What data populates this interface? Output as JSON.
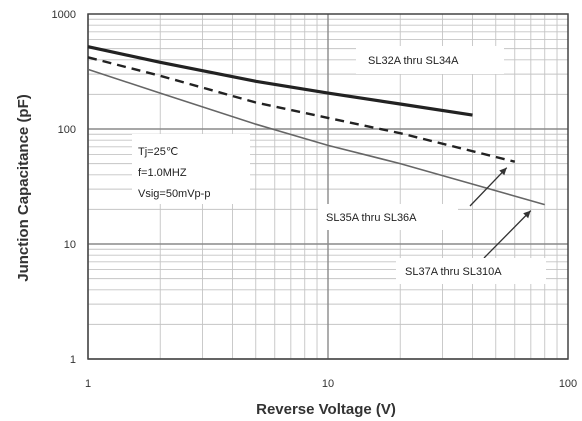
{
  "chart_data": {
    "type": "line",
    "xscale": "log",
    "yscale": "log",
    "xlim": [
      1,
      100
    ],
    "ylim": [
      1,
      1000
    ],
    "xlabel": "Reverse Voltage (V)",
    "ylabel": "Junction Capacitance (pF)",
    "x_ticks": [
      "1",
      "10",
      "100"
    ],
    "y_ticks": [
      "1",
      "10",
      "100",
      "1000"
    ],
    "grid": true,
    "series": [
      {
        "name": "SL32A thru SL34A",
        "style": "solid-thick",
        "color": "#222222",
        "x": [
          1,
          2,
          5,
          10,
          20,
          40
        ],
        "y": [
          520,
          380,
          260,
          205,
          165,
          132
        ]
      },
      {
        "name": "SL35A thru SL36A",
        "style": "dashed",
        "color": "#222222",
        "x": [
          1,
          2,
          5,
          10,
          20,
          60
        ],
        "y": [
          420,
          290,
          170,
          125,
          92,
          52
        ]
      },
      {
        "name": "SL37A thru SL310A",
        "style": "solid-thin",
        "color": "#666666",
        "x": [
          1,
          2,
          5,
          10,
          20,
          80
        ],
        "y": [
          330,
          205,
          110,
          72,
          50,
          22
        ]
      }
    ],
    "annotations": {
      "conditions": [
        "Tj=25℃",
        "f=1.0MHZ",
        "Vsig=50mVp-p"
      ],
      "labels": [
        {
          "series": 0,
          "text": "SL32A thru SL34A"
        },
        {
          "series": 1,
          "text": "SL35A thru SL36A"
        },
        {
          "series": 2,
          "text": "SL37A thru SL310A"
        }
      ]
    }
  }
}
